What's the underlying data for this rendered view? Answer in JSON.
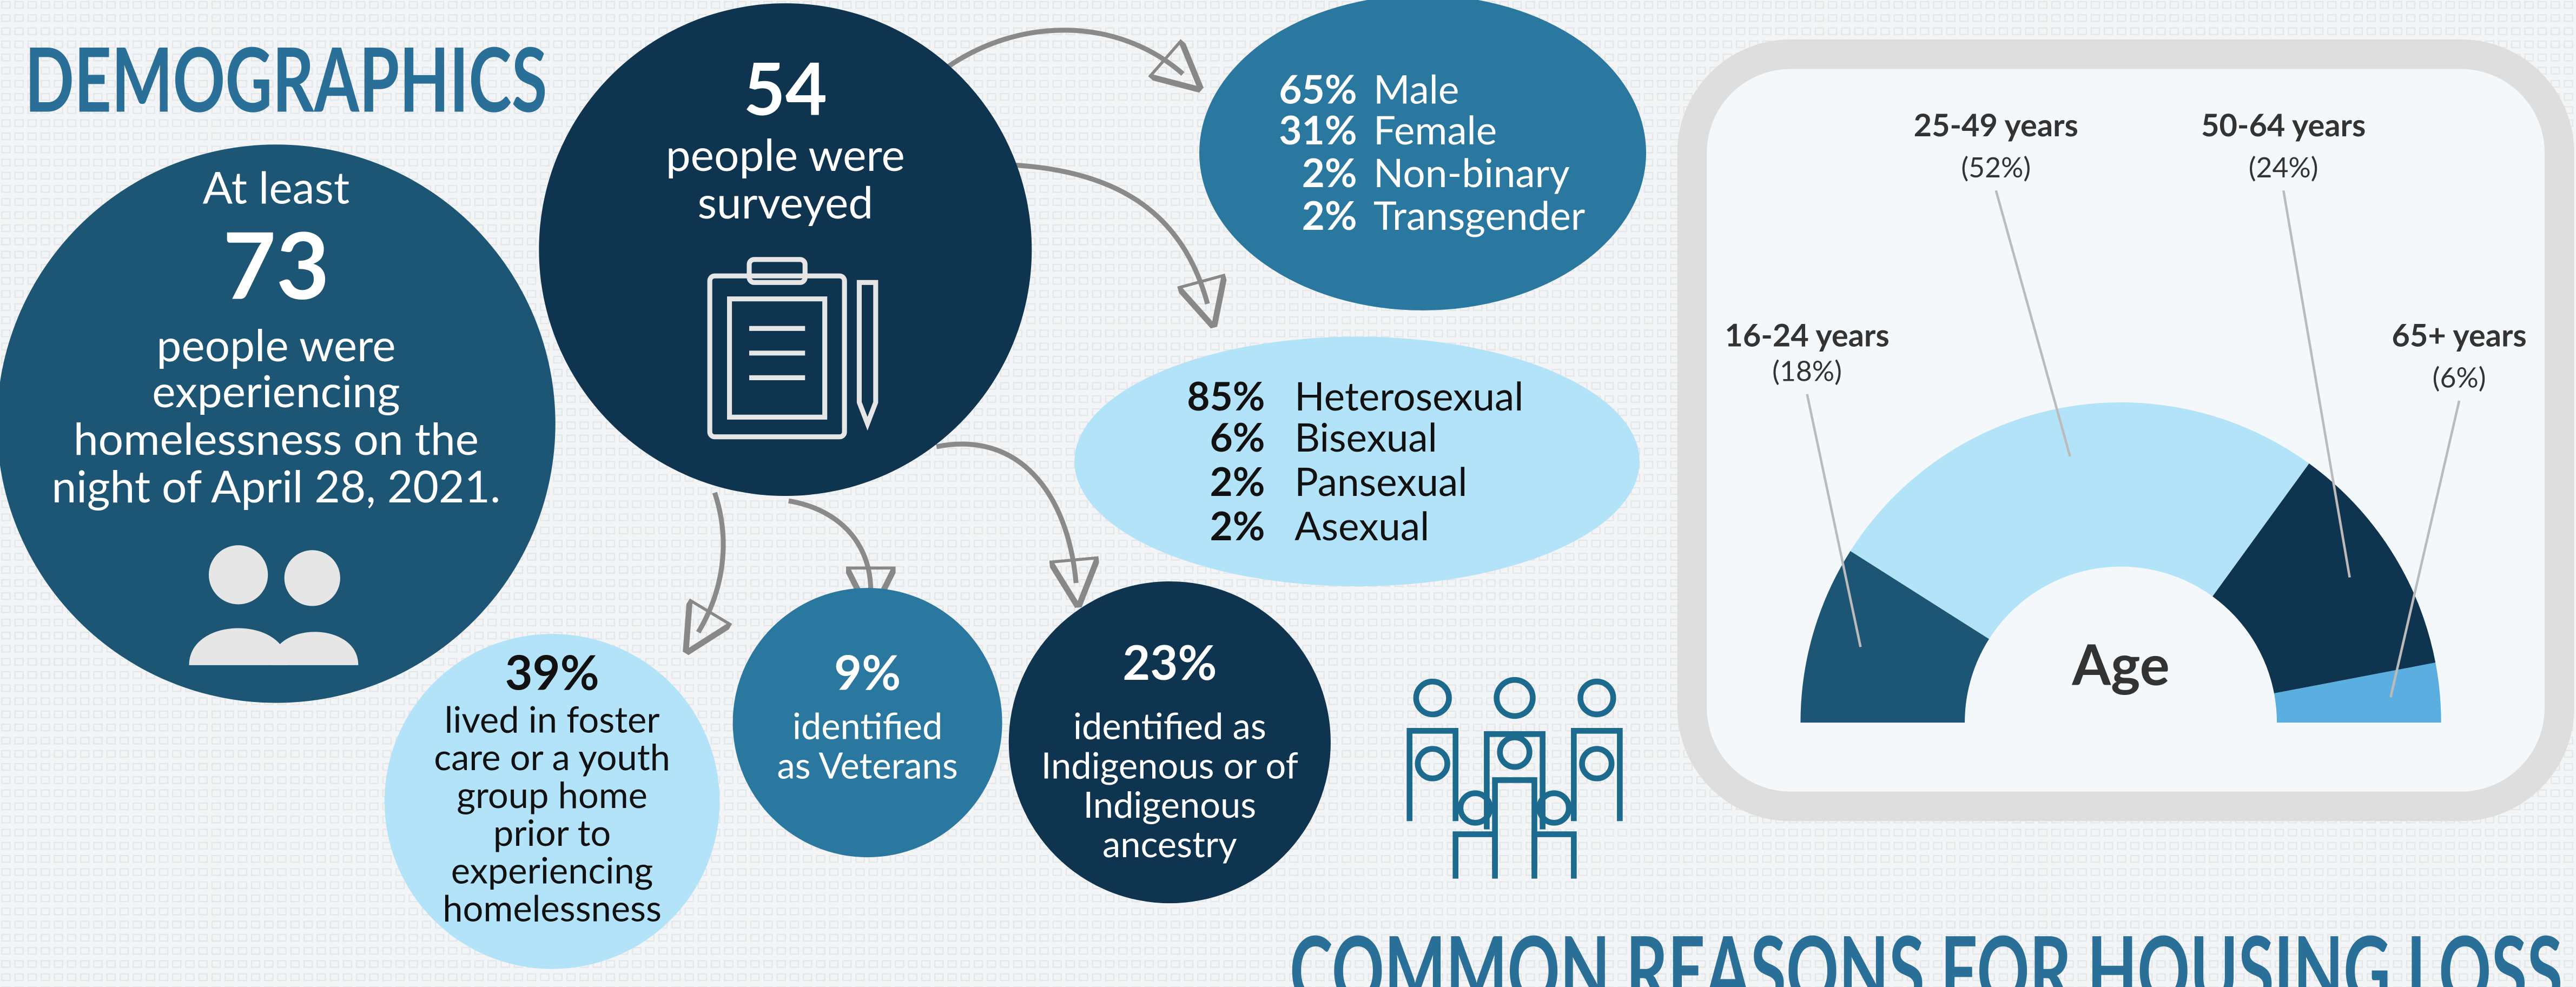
{
  "title": "DEMOGRAPHICS",
  "homeless": {
    "lines": [
      "At least",
      "73",
      "people were",
      "experiencing",
      "homelessness on the",
      "night of April 28, 2021."
    ]
  },
  "surveyed": {
    "lines": [
      "54",
      "people were",
      "surveyed"
    ]
  },
  "gender": {
    "rows": [
      [
        "65%",
        "Male"
      ],
      [
        "31%",
        "Female"
      ],
      [
        "2%",
        "Non-binary"
      ],
      [
        "2%",
        "Transgender"
      ]
    ]
  },
  "orientation": {
    "rows": [
      [
        "85%",
        "Heterosexual"
      ],
      [
        "6%",
        "Bisexual"
      ],
      [
        "2%",
        "Pansexual"
      ],
      [
        "2%",
        "Asexual"
      ]
    ]
  },
  "foster": {
    "lines": [
      "39%",
      "lived in foster",
      "care or a youth",
      "group home",
      "prior to",
      "experiencing",
      "homelessness"
    ]
  },
  "veterans": {
    "lines": [
      "9%",
      "identified",
      "as Veterans"
    ]
  },
  "indigenous": {
    "lines": [
      "23%",
      "identified as",
      "Indigenous or of",
      "Indigenous",
      "ancestry"
    ]
  },
  "chart_data": {
    "type": "pie",
    "half": true,
    "title": "Age",
    "categories": [
      "16-24 years",
      "25-49 years",
      "50-64 years",
      "65+ years"
    ],
    "values": [
      18,
      52,
      24,
      6
    ],
    "value_labels": [
      "(18%)",
      "(52%)",
      "(24%)",
      "(6%)"
    ],
    "colors": [
      "#1d5575",
      "#b3e3f9",
      "#0e3450",
      "#5aaee0"
    ]
  },
  "section_title": "COMMON REASONS FOR HOUSING LOSS"
}
